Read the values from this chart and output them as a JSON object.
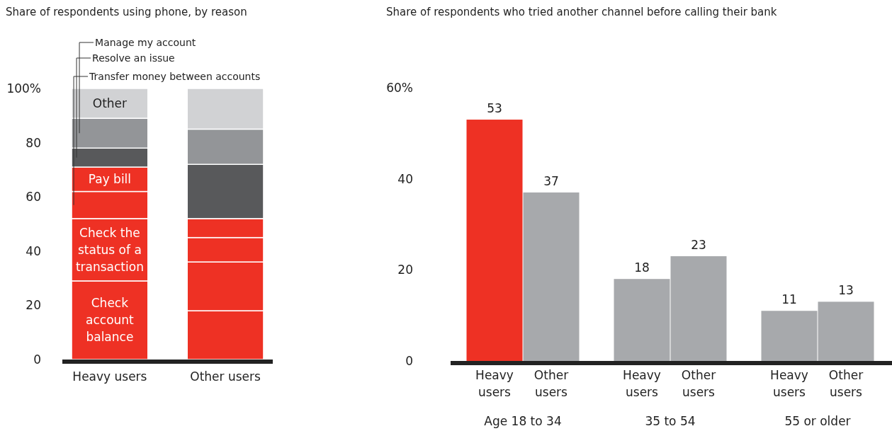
{
  "chart_data": [
    {
      "type": "bar",
      "title": "Share of respondents using phone, by reason",
      "stacked": true,
      "categories": [
        "Heavy users",
        "Other users"
      ],
      "series": [
        {
          "name": "Check account balance",
          "color": "#ee3124",
          "values": [
            29,
            18
          ]
        },
        {
          "name": "Check the status of a transaction",
          "color": "#ee3124",
          "values": [
            23,
            18
          ]
        },
        {
          "name": "Transfer money between accounts",
          "color": "#ee3124",
          "values": [
            10,
            9
          ]
        },
        {
          "name": "Pay bill",
          "color": "#ee3124",
          "values": [
            9,
            7
          ]
        },
        {
          "name": "Resolve an issue",
          "color": "#58595b",
          "values": [
            7,
            20
          ]
        },
        {
          "name": "Manage my account",
          "color": "#939598",
          "values": [
            11,
            13
          ]
        },
        {
          "name": "Other",
          "color": "#d1d2d4",
          "values": [
            11,
            15
          ]
        }
      ],
      "ylim": [
        0,
        100
      ],
      "yticks": [
        0,
        20,
        40,
        60,
        80,
        {
          "value": 100,
          "label": "100%"
        }
      ]
    },
    {
      "type": "bar",
      "title": "Share of respondents who tried another channel before calling their bank",
      "categories": [
        "Age 18 to 34",
        "35 to 54",
        "55 or older"
      ],
      "series": [
        {
          "name": "Heavy users",
          "colors": [
            "#ee3124",
            "#a7a9ac",
            "#a7a9ac"
          ],
          "values": [
            53,
            18,
            11
          ]
        },
        {
          "name": "Other users",
          "colors": [
            "#a7a9ac",
            "#a7a9ac",
            "#a7a9ac"
          ],
          "values": [
            37,
            23,
            13
          ]
        }
      ],
      "data_labels": true,
      "ylim": [
        0,
        60
      ],
      "yticks": [
        0,
        20,
        40,
        {
          "value": 60,
          "label": "60%"
        }
      ]
    }
  ]
}
